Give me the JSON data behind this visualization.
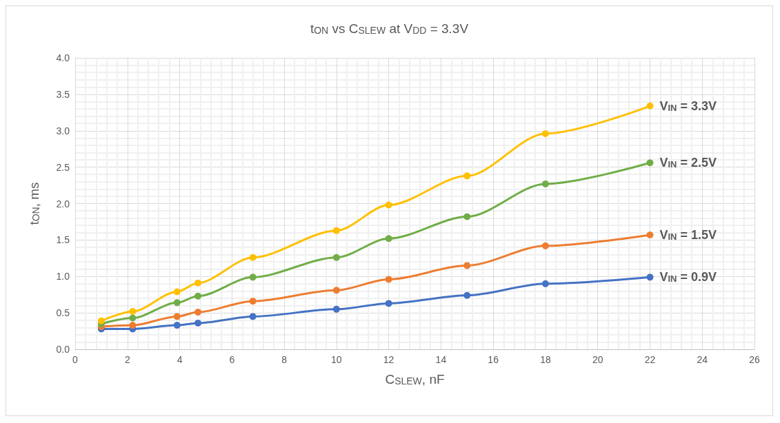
{
  "chart_data": {
    "type": "line",
    "title": "t$_{ON}$ vs C$_{SLEW}$ at V$_{DD}$ = 3.3V",
    "xlabel": "C$_{SLEW}$, nF",
    "ylabel": "t$_{ON}$, ms",
    "x": [
      1,
      2.2,
      3.9,
      4.7,
      6.8,
      10,
      12,
      15,
      18,
      22
    ],
    "series": [
      {
        "name": "V$_{IN}$ = 0.9V",
        "color": "#4472c4",
        "values": [
          0.28,
          0.28,
          0.33,
          0.36,
          0.45,
          0.55,
          0.63,
          0.74,
          0.9,
          0.99
        ]
      },
      {
        "name": "V$_{IN}$ = 1.5V",
        "color": "#ed7d31",
        "values": [
          0.31,
          0.33,
          0.45,
          0.51,
          0.66,
          0.81,
          0.96,
          1.15,
          1.42,
          1.57
        ]
      },
      {
        "name": "V$_{IN}$ = 2.5V",
        "color": "#70ad47",
        "values": [
          0.35,
          0.43,
          0.64,
          0.73,
          0.99,
          1.26,
          1.52,
          1.82,
          2.27,
          2.56
        ]
      },
      {
        "name": "V$_{IN}$ = 3.3V",
        "color": "#ffc000",
        "values": [
          0.39,
          0.52,
          0.79,
          0.91,
          1.26,
          1.63,
          1.98,
          2.38,
          2.96,
          3.34
        ]
      }
    ],
    "xlim": [
      0,
      26
    ],
    "xticks": [
      0,
      2,
      4,
      6,
      8,
      10,
      12,
      14,
      16,
      18,
      20,
      22,
      24,
      26
    ],
    "ylim": [
      0,
      4
    ],
    "yticks": [
      {
        "value": 0,
        "label": "0.0"
      },
      0.5,
      {
        "value": 1,
        "label": "1.0"
      },
      1.5,
      {
        "value": 2,
        "label": "2.0"
      },
      2.5,
      {
        "value": 3,
        "label": "3.0"
      },
      3.5,
      {
        "value": 4,
        "label": "4.0"
      }
    ],
    "grid": true,
    "legend": false,
    "marker": "circle",
    "line_style": "solid"
  }
}
